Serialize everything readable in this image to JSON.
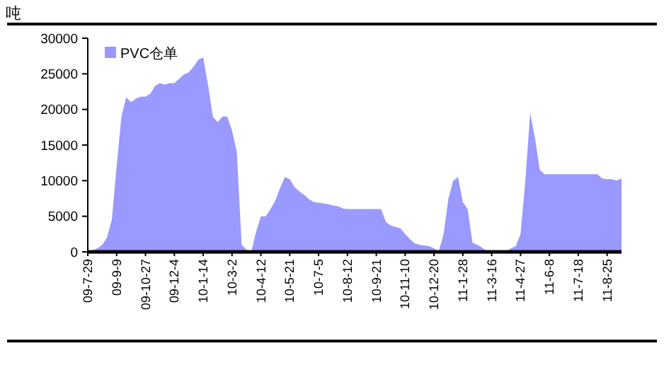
{
  "chart_data": {
    "type": "area",
    "ylabel": "吨",
    "categories": [
      "09-7-29",
      null,
      null,
      null,
      null,
      null,
      "09-9-9",
      null,
      null,
      null,
      null,
      null,
      "09-10-27",
      null,
      null,
      null,
      null,
      null,
      "09-12-4",
      null,
      null,
      null,
      null,
      null,
      "10-1-14",
      null,
      null,
      null,
      null,
      null,
      "10-3-2",
      null,
      null,
      null,
      null,
      null,
      "10-4-12",
      null,
      null,
      null,
      null,
      null,
      "10-5-21",
      null,
      null,
      null,
      null,
      null,
      "10-7-5",
      null,
      null,
      null,
      null,
      null,
      "10-8-12",
      null,
      null,
      null,
      null,
      null,
      "10-9-21",
      null,
      null,
      null,
      null,
      null,
      "10-11-10",
      null,
      null,
      null,
      null,
      null,
      "10-12-20",
      null,
      null,
      null,
      null,
      null,
      "11-1-28",
      null,
      null,
      null,
      null,
      null,
      "11-3-16",
      null,
      null,
      null,
      null,
      null,
      "11-4-27",
      null,
      null,
      null,
      null,
      null,
      "11-6-8",
      null,
      null,
      null,
      null,
      null,
      "11-7-18",
      null,
      null,
      null,
      null,
      null,
      "11-8-25",
      null,
      null,
      null
    ],
    "series": [
      {
        "name": "PVC仓单",
        "color": "#9999ff",
        "values": [
          0,
          200,
          500,
          1000,
          2000,
          4500,
          12000,
          19000,
          21700,
          21000,
          21500,
          21800,
          21800,
          22200,
          23300,
          23700,
          23500,
          23700,
          23700,
          24300,
          24900,
          25200,
          26000,
          27000,
          27300,
          23500,
          19000,
          18200,
          19000,
          19000,
          17000,
          14000,
          1000,
          300,
          0,
          2800,
          5000,
          5000,
          6000,
          7200,
          9000,
          10500,
          10200,
          9100,
          8500,
          8000,
          7400,
          7000,
          6900,
          6800,
          6700,
          6500,
          6400,
          6100,
          6000,
          6000,
          6000,
          6000,
          6000,
          6000,
          6000,
          6000,
          4200,
          3700,
          3500,
          3300,
          2500,
          1800,
          1200,
          1000,
          900,
          800,
          500,
          100,
          2500,
          7500,
          10000,
          10500,
          7000,
          6000,
          1300,
          1000,
          600,
          100,
          0,
          0,
          0,
          0,
          500,
          800,
          2500,
          10000,
          19500,
          16000,
          11500,
          10900,
          10900,
          10900,
          10900,
          10900,
          10900,
          10900,
          10900,
          10900,
          10900,
          10900,
          10900,
          10300,
          10200,
          10200,
          10000,
          10300
        ]
      }
    ],
    "ylim": [
      0,
      30000
    ],
    "yticks": [
      0,
      5000,
      10000,
      15000,
      20000,
      25000,
      30000
    ],
    "grid": false,
    "legend": "top left"
  }
}
